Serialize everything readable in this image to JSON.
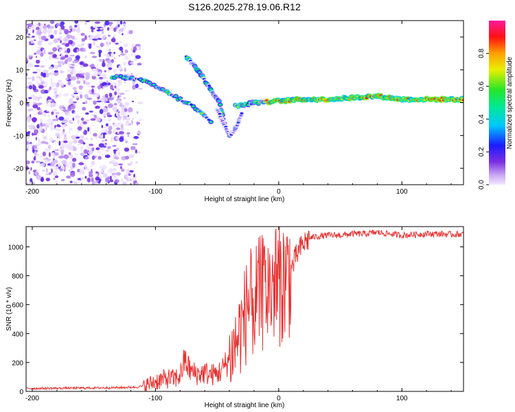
{
  "title": "S126.2025.278.19.06.R12",
  "colors": {
    "snr_line": "#e83030",
    "axes": "#000000",
    "background": "#ffffff"
  },
  "chart_data": [
    {
      "type": "heatmap",
      "title": "S126.2025.278.19.06.R12",
      "xlabel": "Height of straight line (km)",
      "ylabel": "Frequency (Hz)",
      "xlim": [
        -205,
        150
      ],
      "ylim": [
        -25,
        25
      ],
      "xticks": [
        -200,
        -100,
        0,
        100
      ],
      "yticks": [
        -20,
        -10,
        0,
        10,
        20
      ],
      "colorbar": {
        "label": "Normalized spectral amplitude",
        "range": [
          0,
          1
        ],
        "ticks": [
          "0.0",
          "0.2",
          "0.4",
          "0.6",
          "0.8"
        ],
        "colormap": "rainbow (purple → blue → cyan → green → yellow → red → magenta)"
      },
      "features": [
        {
          "name": "lower-branch",
          "x": [
            -135,
            -120,
            -105,
            -90,
            -80,
            -70,
            -62,
            -55
          ],
          "y": [
            8,
            7.5,
            6,
            3,
            1,
            -1,
            -3.5,
            -6
          ]
        },
        {
          "name": "upper-branch",
          "x": [
            -75,
            -70,
            -62,
            -55,
            -48,
            -44
          ],
          "y": [
            14,
            12,
            8,
            4,
            0,
            -6
          ]
        },
        {
          "name": "cusp-tail",
          "x": [
            -50,
            -45,
            -40,
            -35,
            -30
          ],
          "y": [
            -2,
            -6,
            -10,
            -8,
            -3
          ]
        },
        {
          "name": "main-carrier",
          "x": [
            -35,
            -20,
            0,
            20,
            40,
            60,
            80,
            100,
            120,
            150
          ],
          "y": [
            -1,
            0,
            0.5,
            1,
            1,
            1.5,
            2,
            1,
            1,
            1
          ]
        }
      ]
    },
    {
      "type": "line",
      "xlabel": "Height of straight line (km)",
      "ylabel": "SNR (10 * v/v)",
      "xlim": [
        -205,
        150
      ],
      "ylim": [
        0,
        1140
      ],
      "xticks": [
        -200,
        -100,
        0,
        100
      ],
      "yticks": [
        0,
        200,
        400,
        600,
        800,
        1000
      ],
      "series": [
        {
          "name": "SNR",
          "x": [
            -205,
            -180,
            -150,
            -130,
            -115,
            -108,
            -100,
            -95,
            -90,
            -85,
            -80,
            -76,
            -73,
            -70,
            -65,
            -60,
            -55,
            -50,
            -45,
            -40,
            -35,
            -30,
            -25,
            -20,
            -15,
            -10,
            -5,
            0,
            5,
            10,
            15,
            20,
            25,
            30,
            40,
            50,
            60,
            70,
            80,
            90,
            100,
            110,
            120,
            130,
            140,
            150
          ],
          "y": [
            20,
            22,
            24,
            26,
            30,
            40,
            70,
            80,
            90,
            85,
            110,
            220,
            160,
            130,
            120,
            130,
            115,
            120,
            160,
            230,
            330,
            450,
            580,
            620,
            670,
            700,
            730,
            740,
            780,
            840,
            950,
            1020,
            1060,
            1070,
            1080,
            1080,
            1090,
            1090,
            1100,
            1090,
            1080,
            1085,
            1090,
            1090,
            1085,
            1090
          ]
        }
      ]
    }
  ]
}
